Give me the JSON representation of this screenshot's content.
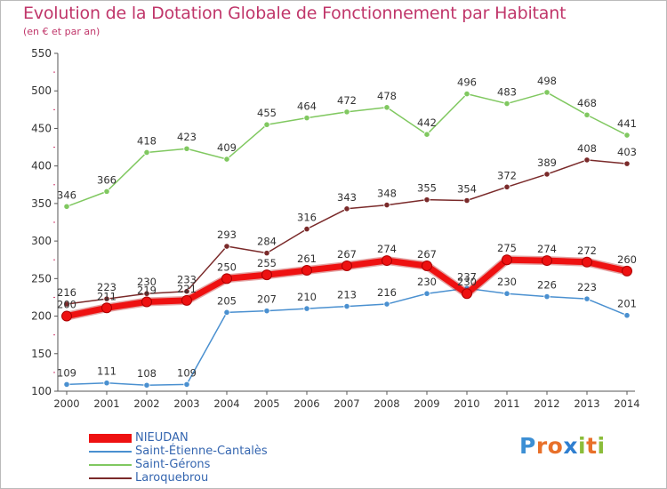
{
  "title": "Evolution de la Dotation Globale de Fonctionnement par Habitant",
  "subtitle": "(en € et par an)",
  "logo": {
    "letters": [
      {
        "ch": "P",
        "color": "#3c8fd4"
      },
      {
        "ch": "r",
        "color": "#e8702a"
      },
      {
        "ch": "o",
        "color": "#e8702a"
      },
      {
        "ch": "x",
        "color": "#2f7fd0"
      },
      {
        "ch": "i",
        "color": "#8bbd3a"
      },
      {
        "ch": "t",
        "color": "#e8702a"
      },
      {
        "ch": "i",
        "color": "#8bbd3a"
      }
    ]
  },
  "chart_data": {
    "type": "line",
    "x": [
      "2000",
      "2001",
      "2002",
      "2003",
      "2004",
      "2005",
      "2006",
      "2007",
      "2008",
      "2009",
      "2010",
      "2011",
      "2012",
      "2013",
      "2014"
    ],
    "ylim": [
      100,
      550
    ],
    "yticks": [
      100,
      150,
      200,
      250,
      300,
      350,
      400,
      450,
      500,
      550
    ],
    "grid": false,
    "legend_position": "bottom-left",
    "series": [
      {
        "name": "NIEUDAN",
        "color": "#ee1111",
        "values": [
          200,
          211,
          219,
          221,
          250,
          255,
          261,
          267,
          274,
          267,
          230,
          275,
          274,
          272,
          260
        ]
      },
      {
        "name": "Saint-Étienne-Cantalès",
        "color": "#4a90d0",
        "values": [
          109,
          111,
          108,
          109,
          205,
          207,
          210,
          213,
          216,
          230,
          237,
          230,
          226,
          223,
          201
        ]
      },
      {
        "name": "Saint-Gérons",
        "color": "#80c860",
        "values": [
          346,
          366,
          418,
          423,
          409,
          455,
          464,
          472,
          478,
          442,
          496,
          483,
          498,
          468,
          441
        ]
      },
      {
        "name": "Laroquebrou",
        "color": "#7a2a2a",
        "values": [
          216,
          223,
          230,
          233,
          293,
          284,
          316,
          343,
          348,
          355,
          354,
          372,
          389,
          408,
          403
        ]
      }
    ]
  }
}
